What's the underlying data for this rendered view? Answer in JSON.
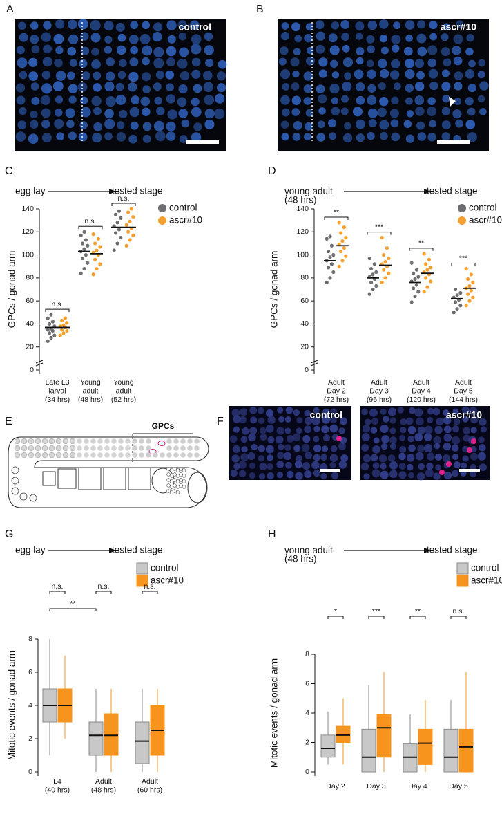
{
  "panel_labels": [
    "A",
    "B",
    "C",
    "D",
    "E",
    "F",
    "G",
    "H"
  ],
  "images": [
    {
      "label": "control"
    },
    {
      "label": "ascr#10"
    },
    {
      "label": "control"
    },
    {
      "label": "ascr#10"
    }
  ],
  "diagram": {
    "label": "GPCs"
  },
  "chart_data": [
    {
      "type": "strip",
      "from": "egg lay",
      "to": "tested stage",
      "ylabel": "GPCs / gonad arm",
      "categories": [
        "Late L3\nlarval\n(34 hrs)",
        "Young\nadult\n(48 hrs)",
        "Young\nadult\n(52 hrs)"
      ],
      "ylim": [
        0,
        140
      ],
      "yticks": [
        0,
        20,
        40,
        60,
        80,
        100,
        120,
        140
      ],
      "series": [
        {
          "name": "control",
          "color": "#6d6e71",
          "values": [
            [
              25,
              28,
              30,
              32,
              34,
              35,
              36,
              38,
              40,
              42,
              45,
              48
            ],
            [
              84,
              88,
              93,
              97,
              100,
              103,
              105,
              108,
              110,
              113,
              117,
              120
            ],
            [
              104,
              110,
              115,
              119,
              122,
              125,
              128,
              132,
              135,
              138
            ]
          ],
          "means": [
            37,
            103,
            124
          ]
        },
        {
          "name": "ascr#10",
          "color": "#f7a030",
          "values": [
            [
              30,
              32,
              34,
              35,
              37,
              38,
              39,
              41,
              43,
              45
            ],
            [
              83,
              88,
              92,
              96,
              100,
              102,
              104,
              107,
              110,
              114,
              118
            ],
            [
              108,
              113,
              117,
              120,
              123,
              126,
              129,
              133,
              137,
              140
            ]
          ],
          "means": [
            37,
            101,
            124
          ]
        }
      ],
      "significance": [
        "n.s.",
        "n.s.",
        "n.s."
      ]
    },
    {
      "type": "strip",
      "from": "young adult\n(48 hrs)",
      "to": "tested stage",
      "ylabel": "GPCs / gonad arm",
      "categories": [
        "Adult\nDay 2\n(72 hrs)",
        "Adult\nDay 3\n(96 hrs)",
        "Adult\nDay 4\n(120 hrs)",
        "Adult\nDay 5\n(144 hrs)"
      ],
      "ylim": [
        0,
        140
      ],
      "yticks": [
        0,
        20,
        40,
        60,
        80,
        100,
        120,
        140
      ],
      "series": [
        {
          "name": "control",
          "color": "#6d6e71",
          "values": [
            [
              76,
              80,
              85,
              89,
              92,
              95,
              98,
              100,
              103,
              108,
              114,
              116
            ],
            [
              66,
              70,
              73,
              76,
              79,
              81,
              83,
              85,
              88,
              92,
              97
            ],
            [
              59,
              64,
              68,
              71,
              74,
              77,
              79,
              81,
              84,
              87,
              93
            ],
            [
              50,
              53,
              56,
              59,
              61,
              63,
              65,
              67,
              70
            ]
          ],
          "means": [
            95,
            80,
            76,
            62
          ]
        },
        {
          "name": "ascr#10",
          "color": "#f7a030",
          "values": [
            [
              90,
              95,
              99,
              103,
              106,
              109,
              112,
              115,
              119,
              124,
              128
            ],
            [
              76,
              80,
              84,
              87,
              90,
              92,
              94,
              97,
              100,
              106,
              115
            ],
            [
              68,
              72,
              77,
              80,
              83,
              85,
              87,
              89,
              92,
              96,
              101
            ],
            [
              56,
              60,
              63,
              66,
              69,
              71,
              73,
              76,
              79,
              83,
              88
            ]
          ],
          "means": [
            108,
            91,
            84,
            71
          ]
        }
      ],
      "significance": [
        "**",
        "***",
        "**",
        "***"
      ]
    },
    {
      "type": "box",
      "from": "egg lay",
      "to": "tested stage",
      "ylabel": "Mitotic events / gonad arm",
      "categories": [
        "L4\n(40 hrs)",
        "Adult\n(48 hrs)",
        "Adult\n(60 hrs)"
      ],
      "ylim": [
        0,
        8
      ],
      "yticks": [
        0,
        2,
        4,
        6,
        8
      ],
      "series": [
        {
          "name": "control",
          "color": "#c8c8c8",
          "edge": "#8a8a8a",
          "min": [
            1,
            0,
            0
          ],
          "q1": [
            3,
            1,
            0.5
          ],
          "median": [
            4,
            2.2,
            1.85
          ],
          "q3": [
            5,
            3,
            3
          ],
          "max": [
            8,
            5,
            5
          ]
        },
        {
          "name": "ascr#10",
          "color": "#f7941d",
          "edge": "#f7941d",
          "min": [
            2,
            0,
            0
          ],
          "q1": [
            3,
            1,
            1
          ],
          "median": [
            4,
            2.2,
            2.5
          ],
          "q3": [
            5,
            3.5,
            4
          ],
          "max": [
            7,
            5,
            5
          ]
        }
      ],
      "significance": [
        "n.s.",
        "n.s.",
        "n.s."
      ],
      "extra_significance": "**"
    },
    {
      "type": "box",
      "from": "young adult\n(48 hrs)",
      "to": "tested stage",
      "ylabel": "Mitotic events / gonad arm",
      "categories": [
        "Day 2",
        "Day 3",
        "Day 4",
        "Day 5"
      ],
      "ylim": [
        0,
        8
      ],
      "yticks": [
        0,
        2,
        4,
        6,
        8
      ],
      "series": [
        {
          "name": "control",
          "color": "#c8c8c8",
          "edge": "#8a8a8a",
          "min": [
            0.5,
            0,
            0,
            0
          ],
          "q1": [
            1,
            0,
            0,
            0
          ],
          "median": [
            1.6,
            1,
            1,
            1
          ],
          "q3": [
            2.5,
            2.9,
            1.9,
            2.9
          ],
          "max": [
            4.1,
            5.9,
            3.9,
            4.9
          ]
        },
        {
          "name": "ascr#10",
          "color": "#f7941d",
          "edge": "#f7941d",
          "min": [
            0.5,
            0,
            0,
            0
          ],
          "q1": [
            2,
            1,
            0.5,
            0
          ],
          "median": [
            2.5,
            3,
            1.95,
            1.7
          ],
          "q3": [
            3.1,
            3.9,
            2.9,
            2.9
          ],
          "max": [
            5,
            6.8,
            4.9,
            6.8
          ]
        }
      ],
      "significance": [
        "*",
        "***",
        "**",
        "n.s."
      ]
    }
  ]
}
